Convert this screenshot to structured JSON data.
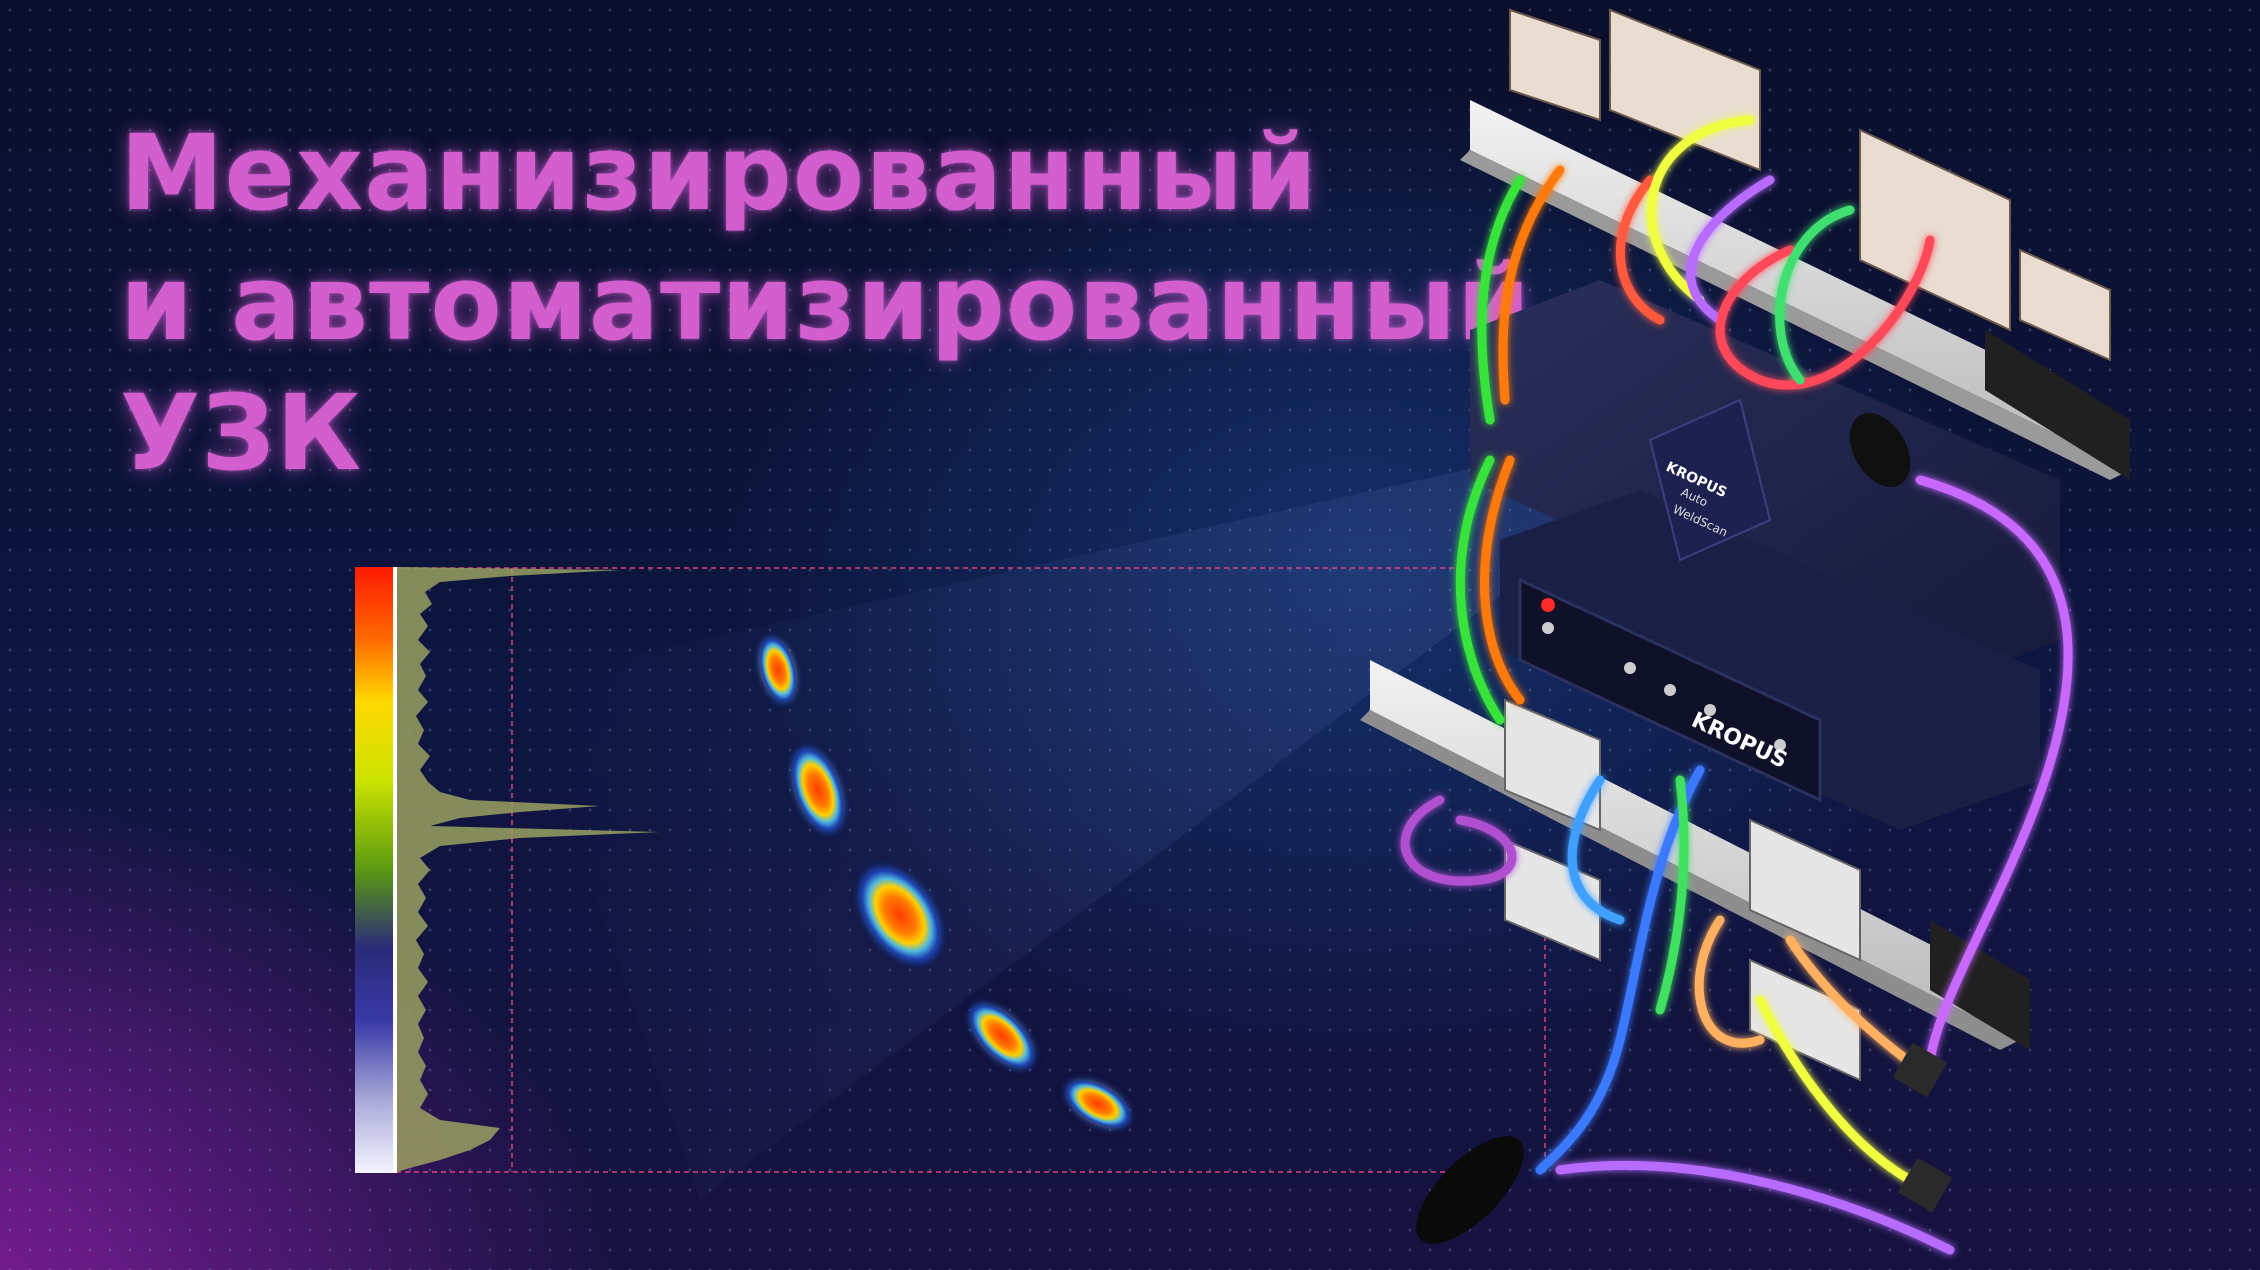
{
  "headline": {
    "line1": "Механизированный",
    "line2": "и автоматизированный",
    "line3": "УЗК"
  },
  "device": {
    "sensor_brand": "KROPUS",
    "sensor_label_1": "Auto",
    "sensor_label_2": "WeldScan",
    "controller_brand": "KROPUS"
  },
  "colors": {
    "headline": "#d35fcf",
    "background": "#0b1233",
    "accent_line": "#e0407a"
  },
  "icons": [
    "color-scale-bar",
    "amplitude-histogram",
    "scan-blob",
    "scanner-device",
    "colored-cables"
  ]
}
